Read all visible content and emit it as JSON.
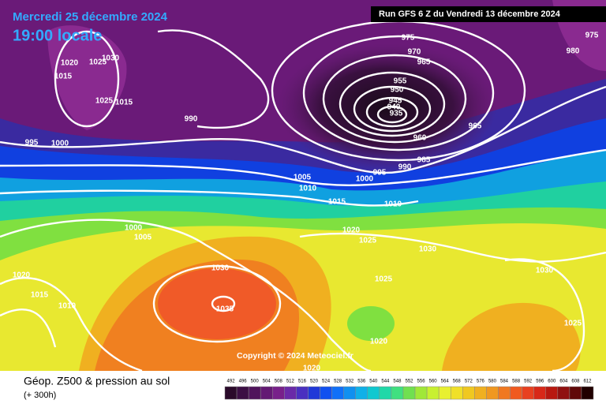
{
  "header": {
    "date": "Mercredi 25 décembre 2024",
    "time": "19:00 locale",
    "run": "Run GFS 6 Z du Vendredi 13 décembre 2024"
  },
  "copyright": "Copyright © 2024 Meteociel.fr",
  "footer": {
    "title": "Géop. Z500 & pression au sol",
    "subtitle": "(+ 300h)"
  },
  "scale": [
    492,
    496,
    500,
    504,
    508,
    512,
    516,
    520,
    524,
    528,
    532,
    536,
    540,
    544,
    548,
    552,
    556,
    560,
    564,
    568,
    572,
    576,
    580,
    584,
    588,
    592,
    596,
    600,
    604,
    608,
    612
  ],
  "isobar_labels": [
    975,
    970,
    965,
    955,
    950,
    945,
    940,
    935,
    960,
    985,
    990,
    995,
    1000,
    1005,
    1010,
    1015,
    1010,
    1020,
    1025,
    1030,
    1025,
    1030,
    1035,
    1020,
    1020,
    1030,
    1025,
    965,
    990,
    975,
    980,
    1030,
    1020,
    1025,
    1015,
    1025,
    1015,
    995,
    1000,
    1000,
    1005,
    1020,
    1015,
    1010
  ]
}
